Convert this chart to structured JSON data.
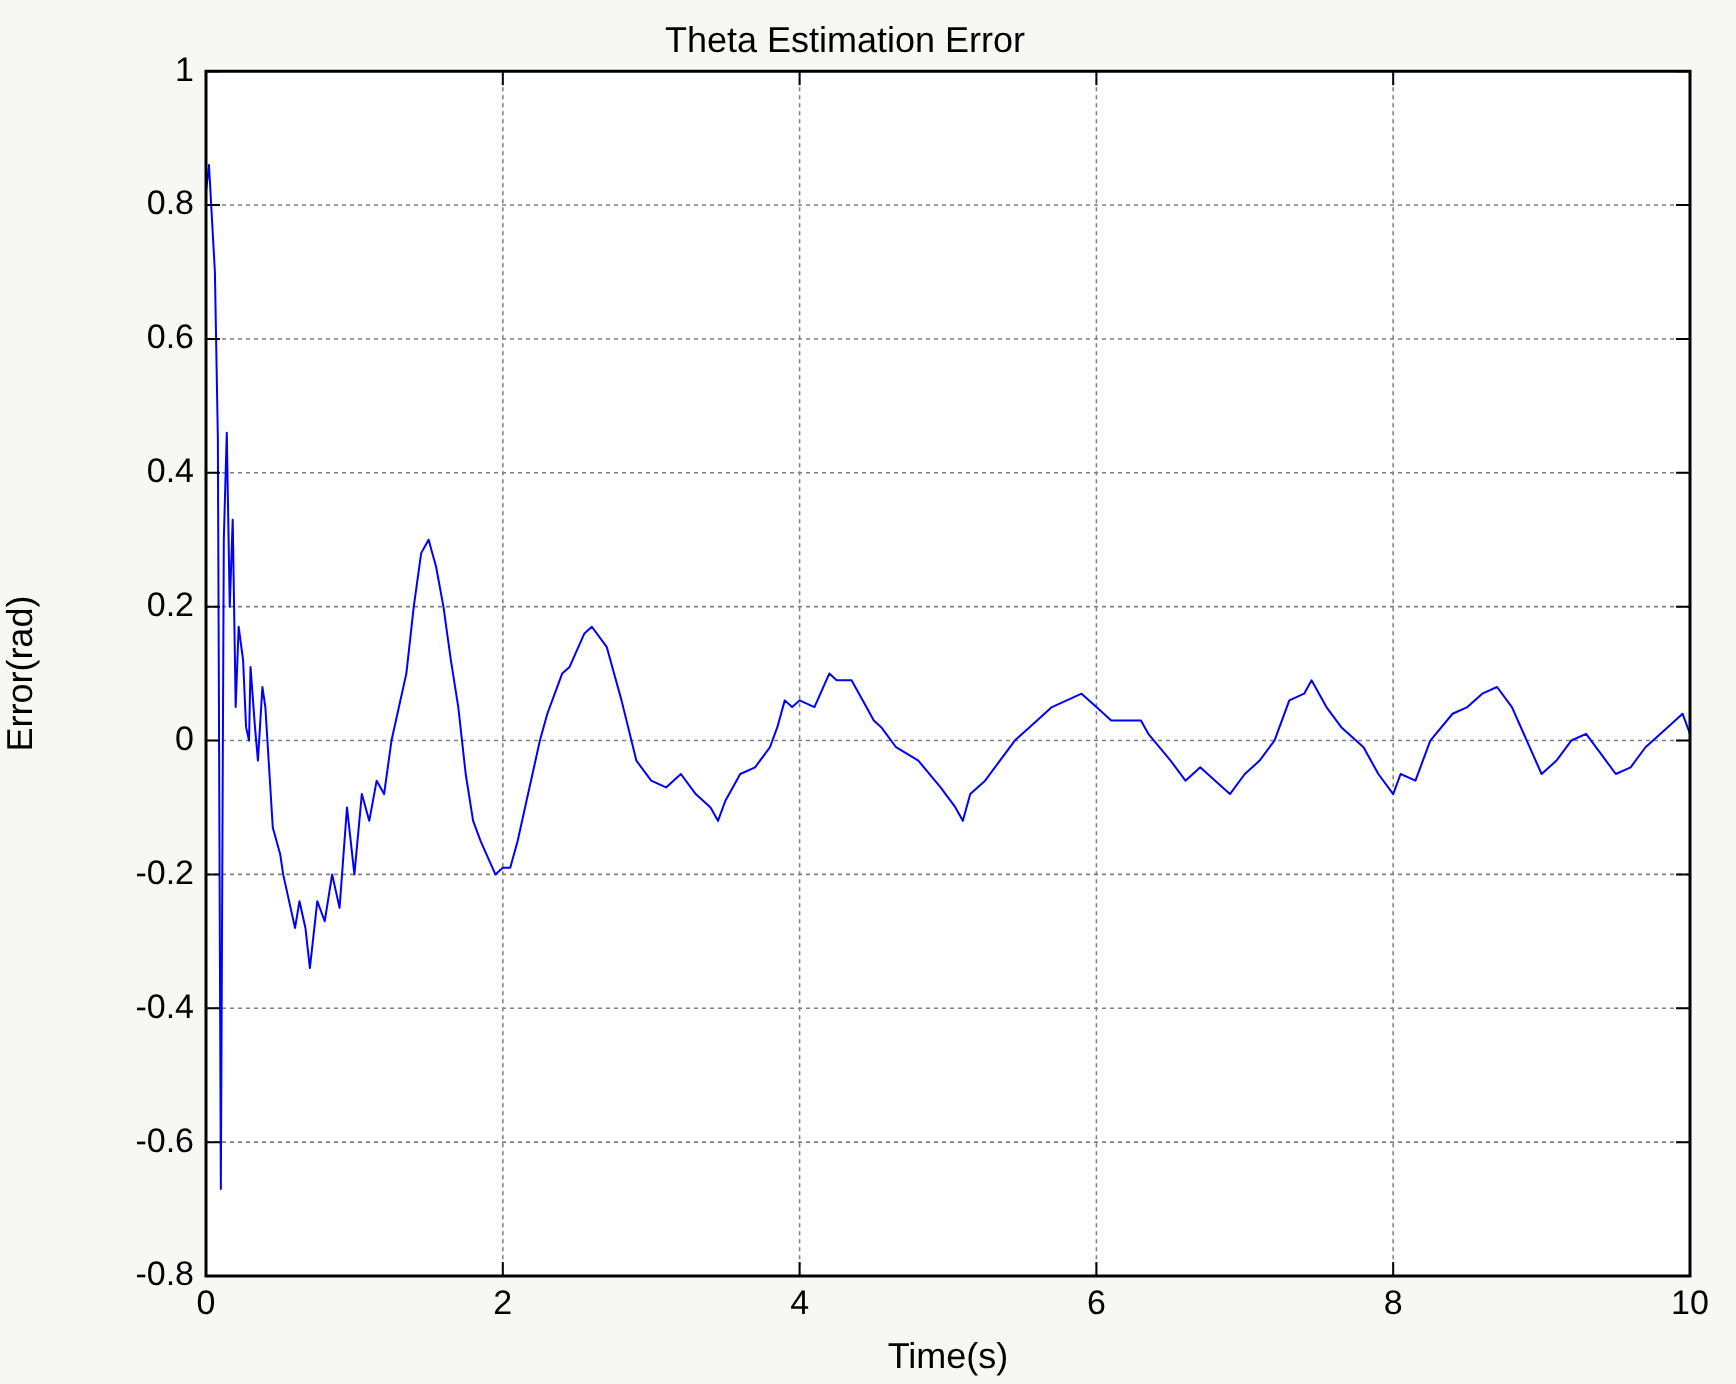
{
  "chart_data": {
    "type": "line",
    "title": "Theta Estimation Error",
    "xlabel": "Time(s)",
    "ylabel": "Error(rad)",
    "xlim": [
      0,
      10
    ],
    "ylim": [
      -0.8,
      1
    ],
    "xticks": [
      0,
      2,
      4,
      6,
      8,
      10
    ],
    "yticks": [
      -0.8,
      -0.6,
      -0.4,
      -0.2,
      0,
      0.2,
      0.4,
      0.6,
      0.8,
      1
    ],
    "grid": true,
    "legend": false,
    "marker": "none",
    "line_style": "solid",
    "series": [
      {
        "color": "#0000ff",
        "x": [
          0,
          0.02,
          0.06,
          0.08,
          0.1,
          0.12,
          0.14,
          0.16,
          0.18,
          0.2,
          0.22,
          0.25,
          0.27,
          0.29,
          0.3,
          0.33,
          0.35,
          0.38,
          0.4,
          0.45,
          0.5,
          0.52,
          0.57,
          0.6,
          0.63,
          0.67,
          0.7,
          0.75,
          0.8,
          0.85,
          0.9,
          0.95,
          1.0,
          1.05,
          1.1,
          1.15,
          1.2,
          1.25,
          1.3,
          1.35,
          1.4,
          1.45,
          1.5,
          1.55,
          1.6,
          1.65,
          1.7,
          1.75,
          1.8,
          1.85,
          1.95,
          2.0,
          2.05,
          2.1,
          2.2,
          2.25,
          2.3,
          2.4,
          2.45,
          2.55,
          2.6,
          2.7,
          2.8,
          2.9,
          3.0,
          3.1,
          3.2,
          3.3,
          3.4,
          3.45,
          3.5,
          3.6,
          3.7,
          3.8,
          3.85,
          3.9,
          3.95,
          4.0,
          4.1,
          4.2,
          4.25,
          4.35,
          4.45,
          4.5,
          4.55,
          4.65,
          4.8,
          4.95,
          5.05,
          5.1,
          5.15,
          5.25,
          5.35,
          5.45,
          5.55,
          5.7,
          5.9,
          6.0,
          6.1,
          6.2,
          6.3,
          6.35,
          6.5,
          6.6,
          6.7,
          6.8,
          6.9,
          7.0,
          7.1,
          7.2,
          7.3,
          7.4,
          7.45,
          7.55,
          7.65,
          7.8,
          7.9,
          8.0,
          8.05,
          8.15,
          8.25,
          8.4,
          8.5,
          8.6,
          8.7,
          8.8,
          8.9,
          9.0,
          9.1,
          9.2,
          9.3,
          9.4,
          9.5,
          9.6,
          9.7,
          9.85,
          9.95,
          10.0
        ],
        "values": [
          0.82,
          0.86,
          0.7,
          0.45,
          -0.67,
          0.3,
          0.46,
          0.2,
          0.33,
          0.05,
          0.17,
          0.12,
          0.02,
          0.0,
          0.11,
          0.02,
          -0.03,
          0.08,
          0.05,
          -0.13,
          -0.17,
          -0.2,
          -0.25,
          -0.28,
          -0.24,
          -0.28,
          -0.34,
          -0.24,
          -0.27,
          -0.2,
          -0.25,
          -0.1,
          -0.2,
          -0.08,
          -0.12,
          -0.06,
          -0.08,
          0.0,
          0.05,
          0.1,
          0.2,
          0.28,
          0.3,
          0.26,
          0.2,
          0.12,
          0.05,
          -0.05,
          -0.12,
          -0.15,
          -0.2,
          -0.19,
          -0.19,
          -0.15,
          -0.05,
          0.0,
          0.04,
          0.1,
          0.11,
          0.16,
          0.17,
          0.14,
          0.06,
          -0.03,
          -0.06,
          -0.07,
          -0.05,
          -0.08,
          -0.1,
          -0.12,
          -0.09,
          -0.05,
          -0.04,
          -0.01,
          0.02,
          0.06,
          0.05,
          0.06,
          0.05,
          0.1,
          0.09,
          0.09,
          0.05,
          0.03,
          0.02,
          -0.01,
          -0.03,
          -0.07,
          -0.1,
          -0.12,
          -0.08,
          -0.06,
          -0.03,
          0.0,
          0.02,
          0.05,
          0.07,
          0.05,
          0.03,
          0.03,
          0.03,
          0.01,
          -0.03,
          -0.06,
          -0.04,
          -0.06,
          -0.08,
          -0.05,
          -0.03,
          0.0,
          0.06,
          0.07,
          0.09,
          0.05,
          0.02,
          -0.01,
          -0.05,
          -0.08,
          -0.05,
          -0.06,
          0.0,
          0.04,
          0.05,
          0.07,
          0.08,
          0.05,
          0.0,
          -0.05,
          -0.03,
          0.0,
          0.01,
          -0.02,
          -0.05,
          -0.04,
          -0.01,
          0.02,
          0.04,
          0.01
        ]
      }
    ]
  }
}
